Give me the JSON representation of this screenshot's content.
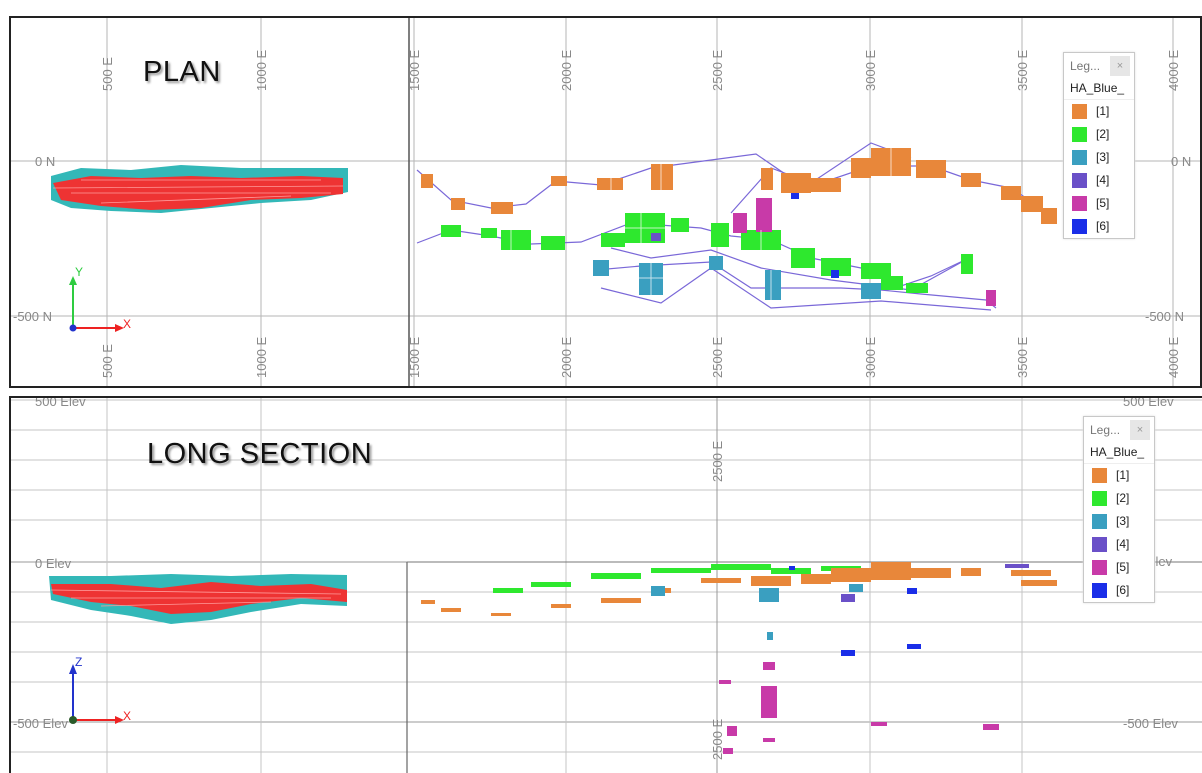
{
  "plan": {
    "title": "PLAN",
    "x_tick_labels": [
      "500 E",
      "1000 E",
      "1500 E",
      "2000 E",
      "2500 E",
      "3000 E",
      "3500 E",
      "4000 E"
    ],
    "y_tick_labels": [
      "0 N",
      "-500 N"
    ],
    "axis_x": "X",
    "axis_y": "Y"
  },
  "long_section": {
    "title": "LONG SECTION",
    "x_tick_labels": [
      "2500 E"
    ],
    "elev_labels": [
      "500 Elev",
      "0 Elev",
      "-500 Elev"
    ],
    "axis_x": "X",
    "axis_z": "Z"
  },
  "legend": {
    "title": "Leg...",
    "close": "×",
    "subtitle": "HA_Blue_",
    "items": [
      {
        "label": "[1]",
        "color": "#e8873a"
      },
      {
        "label": "[2]",
        "color": "#2ee82e"
      },
      {
        "label": "[3]",
        "color": "#3a9fc0"
      },
      {
        "label": "[4]",
        "color": "#6a50c8"
      },
      {
        "label": "[5]",
        "color": "#c83aa8"
      },
      {
        "label": "[6]",
        "color": "#1a2ee8"
      }
    ]
  },
  "colors": {
    "model_red": "#ee3333",
    "model_teal": "#33b8b8",
    "line": "#7a68d8"
  }
}
